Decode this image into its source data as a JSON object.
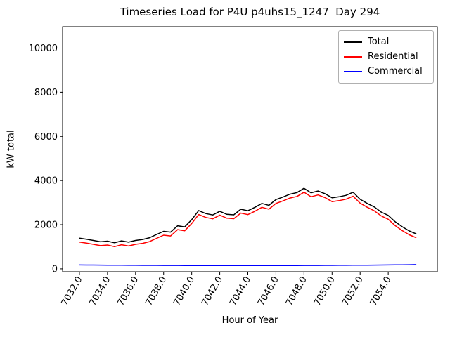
{
  "figure": {
    "title": "Timeseries Load for P4U p4uhs15_1247  Day 294",
    "xlabel": "Hour of Year",
    "ylabel": "kW total"
  },
  "chart_data": {
    "type": "line",
    "title": "Timeseries Load for P4U p4uhs15_1247  Day 294",
    "xlabel": "Hour of Year",
    "ylabel": "kW total",
    "grid": false,
    "legend_position": "upper right",
    "xlim": [
      7030.8,
      7057.5
    ],
    "ylim": [
      -130,
      10970
    ],
    "x_ticks": [
      7032,
      7034,
      7036,
      7038,
      7040,
      7042,
      7044,
      7046,
      7048,
      7050,
      7052,
      7054
    ],
    "x_tick_labels": [
      "7032.0",
      "7034.0",
      "7036.0",
      "7038.0",
      "7040.0",
      "7042.0",
      "7044.0",
      "7046.0",
      "7048.0",
      "7050.0",
      "7052.0",
      "7054.0"
    ],
    "y_ticks": [
      0,
      2000,
      4000,
      6000,
      8000,
      10000
    ],
    "y_tick_labels": [
      "0",
      "2000",
      "4000",
      "6000",
      "8000",
      "10000"
    ],
    "x": [
      7032.0,
      7032.5,
      7033.0,
      7033.5,
      7034.0,
      7034.5,
      7035.0,
      7035.5,
      7036.0,
      7036.5,
      7037.0,
      7037.5,
      7038.0,
      7038.5,
      7039.0,
      7039.5,
      7040.0,
      7040.5,
      7041.0,
      7041.5,
      7042.0,
      7042.5,
      7043.0,
      7043.5,
      7044.0,
      7044.5,
      7045.0,
      7045.5,
      7046.0,
      7046.5,
      7047.0,
      7047.5,
      7048.0,
      7048.5,
      7049.0,
      7049.5,
      7050.0,
      7050.5,
      7051.0,
      7051.5,
      7052.0,
      7052.5,
      7053.0,
      7053.5,
      7054.0,
      7054.5,
      7055.0,
      7055.5,
      7056.0
    ],
    "series": [
      {
        "name": "Total",
        "color": "#000000",
        "values": [
          1390,
          1340,
          1285,
          1225,
          1255,
          1180,
          1265,
          1210,
          1285,
          1330,
          1410,
          1555,
          1700,
          1665,
          1950,
          1900,
          2230,
          2640,
          2505,
          2440,
          2610,
          2470,
          2445,
          2700,
          2630,
          2785,
          2960,
          2875,
          3135,
          3250,
          3380,
          3455,
          3650,
          3445,
          3525,
          3400,
          3220,
          3265,
          3330,
          3470,
          3150,
          2965,
          2805,
          2575,
          2420,
          2130,
          1905,
          1715,
          1580
        ]
      },
      {
        "name": "Residential",
        "color": "#ff0000",
        "values": [
          1215,
          1165,
          1110,
          1050,
          1080,
          1005,
          1090,
          1035,
          1110,
          1155,
          1235,
          1380,
          1525,
          1490,
          1775,
          1725,
          2055,
          2460,
          2330,
          2265,
          2435,
          2295,
          2270,
          2525,
          2455,
          2610,
          2785,
          2700,
          2960,
          3075,
          3205,
          3280,
          3470,
          3265,
          3345,
          3225,
          3045,
          3090,
          3155,
          3290,
          2975,
          2790,
          2630,
          2400,
          2245,
          1955,
          1730,
          1540,
          1405
        ]
      },
      {
        "name": "Commercial",
        "color": "#0000ff",
        "values": [
          175,
          173,
          171,
          169,
          167,
          165,
          163,
          161,
          159,
          157,
          156,
          155,
          154,
          153,
          152,
          151,
          150,
          150,
          149,
          149,
          148,
          148,
          148,
          147,
          147,
          147,
          148,
          148,
          149,
          150,
          150,
          151,
          152,
          153,
          154,
          155,
          157,
          158,
          160,
          162,
          164,
          166,
          169,
          172,
          175,
          178,
          182,
          186,
          190
        ]
      }
    ]
  }
}
